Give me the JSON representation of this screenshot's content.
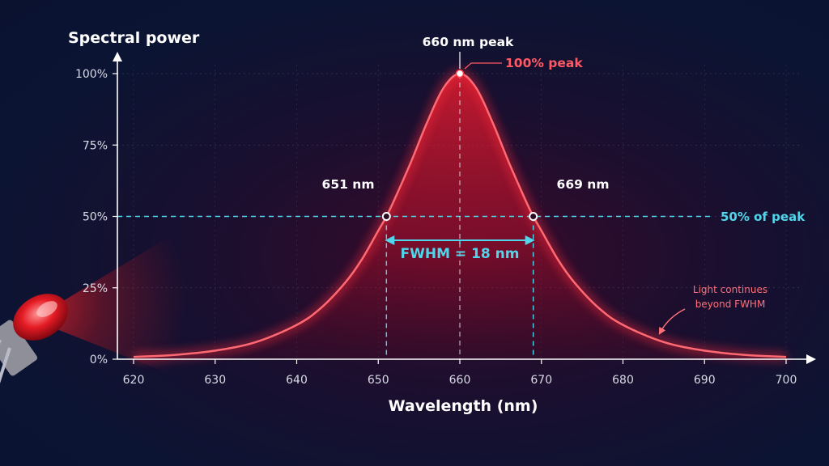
{
  "chart_data": {
    "type": "line",
    "ylabel": "Spectral power",
    "xlabel": "Wavelength (nm)",
    "xlim": [
      620,
      700
    ],
    "ylim": [
      0,
      100
    ],
    "x_ticks": [
      "620",
      "630",
      "640",
      "650",
      "660",
      "670",
      "680",
      "690",
      "700"
    ],
    "y_ticks": [
      "0%",
      "25%",
      "50%",
      "75%",
      "100%"
    ],
    "y_tick_values": [
      0,
      25,
      50,
      75,
      100
    ],
    "x_tick_values": [
      620,
      630,
      640,
      650,
      660,
      670,
      680,
      690,
      700
    ],
    "series": [
      {
        "x": [
          620,
          625,
          630,
          635,
          640,
          643,
          646,
          648,
          650,
          651,
          652,
          654,
          656,
          658,
          660,
          662,
          664,
          666,
          668,
          669,
          670,
          672,
          674,
          677,
          680,
          685,
          690,
          695,
          700
        ],
        "y": [
          0.8,
          1.5,
          3,
          6,
          12,
          18,
          27,
          35,
          45,
          50,
          56,
          69,
          83,
          95,
          100,
          95,
          83,
          69,
          56,
          50,
          45,
          35,
          27,
          18,
          12,
          6,
          3,
          1.5,
          0.8
        ],
        "color": "#ff2a3a"
      }
    ],
    "peak": {
      "x": 660,
      "y": 100,
      "label": "660 nm peak",
      "annotation": "100% peak"
    },
    "half_max": {
      "y": 50,
      "label": "50% of peak"
    },
    "fwhm_points": [
      {
        "x": 651,
        "y": 50,
        "label": "651 nm"
      },
      {
        "x": 669,
        "y": 50,
        "label": "669 nm"
      }
    ],
    "fwhm_label": "FWHM = 18 nm",
    "annotations": [
      "Light continues",
      "beyond FWHM"
    ],
    "colors": {
      "curve": "#ff2a3a",
      "guide": "#4fd6ea",
      "axis": "#ffffff",
      "peak_label": "#ff5a64"
    },
    "grid": true
  },
  "decoration": {
    "icon": "red-led-icon"
  }
}
